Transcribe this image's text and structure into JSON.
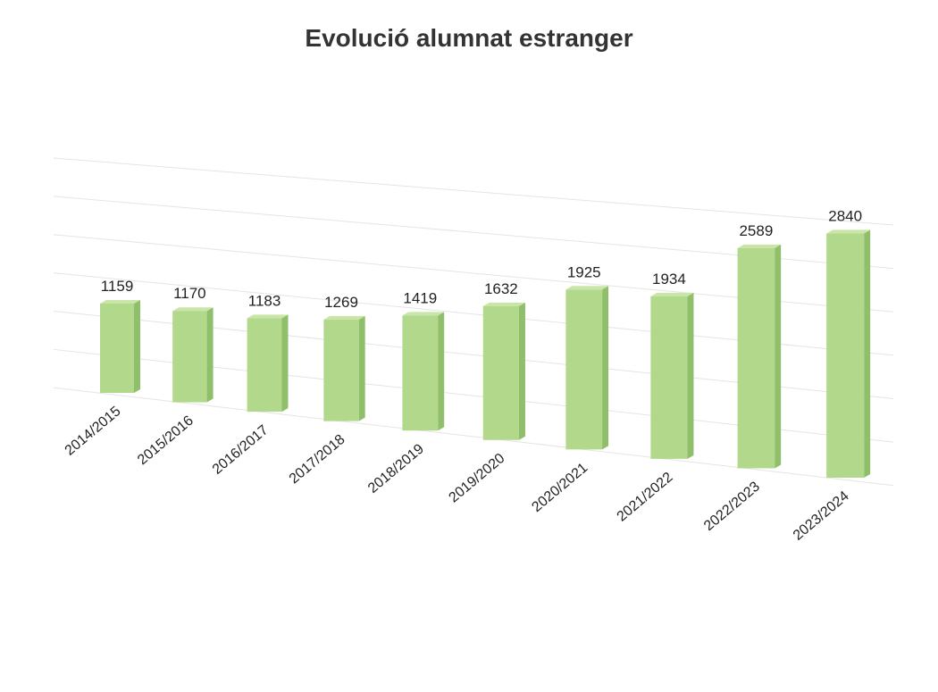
{
  "chart_data": {
    "type": "bar3d",
    "title": "Evolució alumnat estranger",
    "categories": [
      "2014/2015",
      "2015/2016",
      "2016/2017",
      "2017/2018",
      "2018/2019",
      "2019/2020",
      "2020/2021",
      "2021/2022",
      "2022/2023",
      "2023/2024"
    ],
    "values": [
      1159,
      1170,
      1183,
      1269,
      1419,
      1632,
      1925,
      1934,
      2589,
      2840
    ],
    "color": "#b2d88c",
    "ylim": [
      0,
      3000
    ],
    "yticks": [
      0,
      500,
      1000,
      1500,
      2000,
      2500,
      3000
    ],
    "grid": true
  }
}
